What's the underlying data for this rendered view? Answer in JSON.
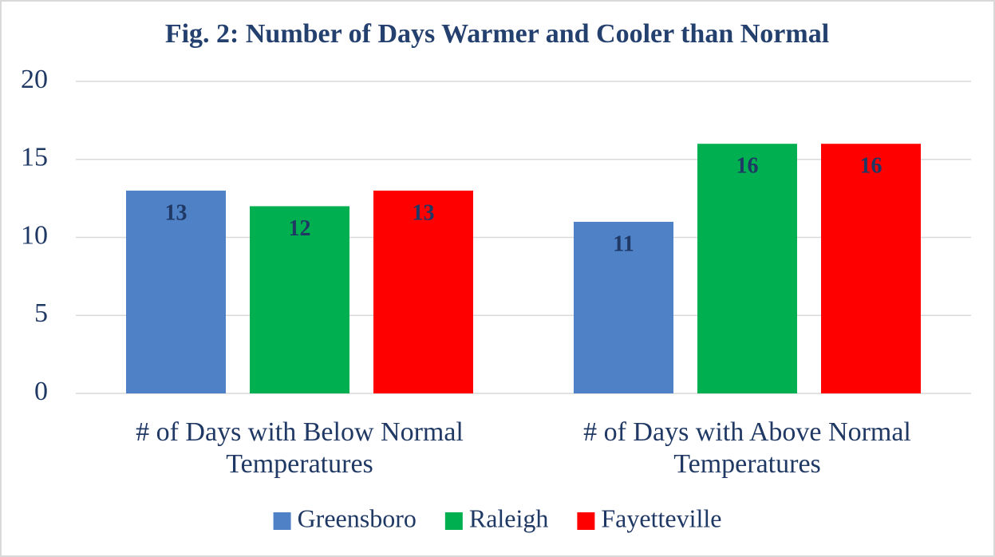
{
  "chart_data": {
    "type": "bar",
    "title": "Fig. 2: Number of Days Warmer and Cooler than Normal",
    "categories": [
      "# of Days with Below Normal Temperatures",
      "# of Days with Above Normal Temperatures"
    ],
    "series": [
      {
        "name": "Greensboro",
        "color": "#4f81c7",
        "values": [
          13,
          11
        ]
      },
      {
        "name": "Raleigh",
        "color": "#00b050",
        "values": [
          12,
          16
        ]
      },
      {
        "name": "Fayetteville",
        "color": "#ff0000",
        "values": [
          13,
          16
        ]
      }
    ],
    "ylim": [
      0,
      20
    ],
    "yticks": [
      0,
      5,
      10,
      15,
      20
    ],
    "grid": true,
    "legend": "bottom"
  }
}
